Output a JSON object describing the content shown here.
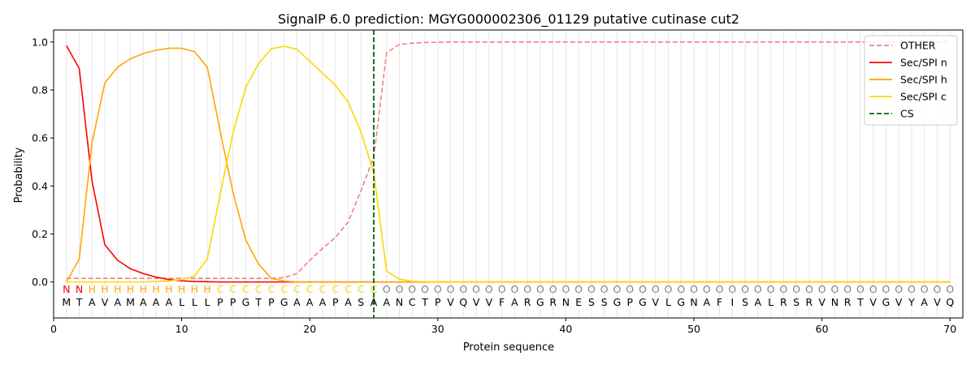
{
  "chart_data": {
    "type": "line",
    "title": "SignalP 6.0 prediction: MGYG000002306_01129 putative cutinase cut2",
    "xlabel": "Protein sequence",
    "ylabel": "Probability",
    "xlim": [
      0,
      71
    ],
    "ylim": [
      -0.15,
      1.05
    ],
    "x_ticks": [
      0,
      10,
      20,
      30,
      40,
      50,
      60,
      70
    ],
    "y_ticks": [
      0.0,
      0.2,
      0.4,
      0.6,
      0.8,
      1.0
    ],
    "x_tick_labels": [
      "0",
      "10",
      "20",
      "30",
      "40",
      "50",
      "60",
      "70"
    ],
    "y_tick_labels": [
      "0.0",
      "0.2",
      "0.4",
      "0.6",
      "0.8",
      "1.0"
    ],
    "grid": "vertical lines at each residue",
    "legend_position": "top-right",
    "sequence": [
      "M",
      "T",
      "A",
      "V",
      "A",
      "M",
      "A",
      "A",
      "A",
      "L",
      "L",
      "L",
      "P",
      "P",
      "G",
      "T",
      "P",
      "G",
      "A",
      "A",
      "A",
      "P",
      "A",
      "S",
      "A",
      "A",
      "N",
      "C",
      "T",
      "P",
      "V",
      "Q",
      "V",
      "V",
      "F",
      "A",
      "R",
      "G",
      "R",
      "N",
      "E",
      "S",
      "S",
      "G",
      "P",
      "G",
      "V",
      "L",
      "G",
      "N",
      "A",
      "F",
      "I",
      "S",
      "A",
      "L",
      "R",
      "S",
      "R",
      "V",
      "N",
      "R",
      "T",
      "V",
      "G",
      "V",
      "Y",
      "A",
      "V",
      "Q"
    ],
    "labels": [
      "N",
      "N",
      "H",
      "H",
      "H",
      "H",
      "H",
      "H",
      "H",
      "H",
      "H",
      "H",
      "C",
      "C",
      "C",
      "C",
      "C",
      "C",
      "C",
      "C",
      "C",
      "C",
      "C",
      "C",
      "C",
      "O",
      "O",
      "O",
      "O",
      "O",
      "O",
      "O",
      "O",
      "O",
      "O",
      "O",
      "O",
      "O",
      "O",
      "O",
      "O",
      "O",
      "O",
      "O",
      "O",
      "O",
      "O",
      "O",
      "O",
      "O",
      "O",
      "O",
      "O",
      "O",
      "O",
      "O",
      "O",
      "O",
      "O",
      "O",
      "O",
      "O",
      "O",
      "O",
      "O",
      "O",
      "O",
      "O",
      "O",
      "O"
    ],
    "label_colors": {
      "N": "#ff0000",
      "H": "#ffa500",
      "C": "#ffd700",
      "O": "#808080"
    },
    "cs_position": 25,
    "series": [
      {
        "name": "OTHER",
        "color": "#f08080",
        "dash": true,
        "values": [
          0.015,
          0.015,
          0.015,
          0.015,
          0.015,
          0.015,
          0.015,
          0.015,
          0.015,
          0.015,
          0.015,
          0.015,
          0.015,
          0.015,
          0.015,
          0.015,
          0.015,
          0.018,
          0.035,
          0.09,
          0.14,
          0.185,
          0.25,
          0.38,
          0.52,
          0.955,
          0.99,
          0.995,
          0.998,
          0.999,
          1.0,
          1.0,
          1.0,
          1.0,
          1.0,
          1.0,
          1.0,
          1.0,
          1.0,
          1.0,
          1.0,
          1.0,
          1.0,
          1.0,
          1.0,
          1.0,
          1.0,
          1.0,
          1.0,
          1.0,
          1.0,
          1.0,
          1.0,
          1.0,
          1.0,
          1.0,
          1.0,
          1.0,
          1.0,
          1.0,
          1.0,
          1.0,
          1.0,
          1.0,
          1.0,
          1.0,
          1.0,
          1.0,
          1.0,
          1.0
        ]
      },
      {
        "name": "Sec/SPI n",
        "color": "#ff0000",
        "dash": false,
        "values": [
          0.985,
          0.89,
          0.42,
          0.155,
          0.09,
          0.055,
          0.035,
          0.02,
          0.01,
          0.005,
          0.002,
          0.001,
          0.0,
          0.0,
          0.0,
          0.0,
          0.0,
          0.0,
          0.0,
          0.0,
          0.0,
          0.0,
          0.0,
          0.0,
          0.0,
          0.0,
          0.0,
          0.0,
          0.0,
          0.0,
          0.0,
          0.0,
          0.0,
          0.0,
          0.0,
          0.0,
          0.0,
          0.0,
          0.0,
          0.0,
          0.0,
          0.0,
          0.0,
          0.0,
          0.0,
          0.0,
          0.0,
          0.0,
          0.0,
          0.0,
          0.0,
          0.0,
          0.0,
          0.0,
          0.0,
          0.0,
          0.0,
          0.0,
          0.0,
          0.0,
          0.0,
          0.0,
          0.0,
          0.0,
          0.0,
          0.0,
          0.0,
          0.0,
          0.0,
          0.0
        ]
      },
      {
        "name": "Sec/SPI h",
        "color": "#ffa500",
        "dash": false,
        "values": [
          0.0,
          0.095,
          0.58,
          0.83,
          0.895,
          0.93,
          0.952,
          0.966,
          0.974,
          0.974,
          0.96,
          0.895,
          0.63,
          0.375,
          0.175,
          0.075,
          0.015,
          0.004,
          0.0,
          0.0,
          0.0,
          0.0,
          0.0,
          0.0,
          0.0,
          0.0,
          0.0,
          0.0,
          0.0,
          0.0,
          0.0,
          0.0,
          0.0,
          0.0,
          0.0,
          0.0,
          0.0,
          0.0,
          0.0,
          0.0,
          0.0,
          0.0,
          0.0,
          0.0,
          0.0,
          0.0,
          0.0,
          0.0,
          0.0,
          0.0,
          0.0,
          0.0,
          0.0,
          0.0,
          0.0,
          0.0,
          0.0,
          0.0,
          0.0,
          0.0,
          0.0,
          0.0,
          0.0,
          0.0,
          0.0,
          0.0,
          0.0,
          0.0,
          0.0,
          0.0
        ]
      },
      {
        "name": "Sec/SPI c",
        "color": "#ffd700",
        "dash": false,
        "values": [
          0.0,
          0.0,
          0.0,
          0.0,
          0.0,
          0.0,
          0.0,
          0.002,
          0.004,
          0.01,
          0.025,
          0.095,
          0.365,
          0.62,
          0.81,
          0.91,
          0.972,
          0.982,
          0.97,
          0.92,
          0.87,
          0.82,
          0.75,
          0.625,
          0.455,
          0.045,
          0.012,
          0.003,
          0.001,
          0.0,
          0.0,
          0.0,
          0.0,
          0.0,
          0.0,
          0.0,
          0.0,
          0.0,
          0.0,
          0.0,
          0.0,
          0.0,
          0.0,
          0.0,
          0.0,
          0.0,
          0.0,
          0.0,
          0.0,
          0.0,
          0.0,
          0.0,
          0.0,
          0.0,
          0.0,
          0.0,
          0.0,
          0.0,
          0.0,
          0.0,
          0.0,
          0.0,
          0.0,
          0.0,
          0.0,
          0.0,
          0.0,
          0.0,
          0.0,
          0.0
        ]
      }
    ],
    "legend": [
      {
        "label": "OTHER",
        "color": "#f08080",
        "dash": true
      },
      {
        "label": "Sec/SPI n",
        "color": "#ff0000",
        "dash": false
      },
      {
        "label": "Sec/SPI h",
        "color": "#ffa500",
        "dash": false
      },
      {
        "label": "Sec/SPI c",
        "color": "#ffd700",
        "dash": false
      },
      {
        "label": "CS",
        "color": "#006400",
        "dash": true
      }
    ]
  }
}
